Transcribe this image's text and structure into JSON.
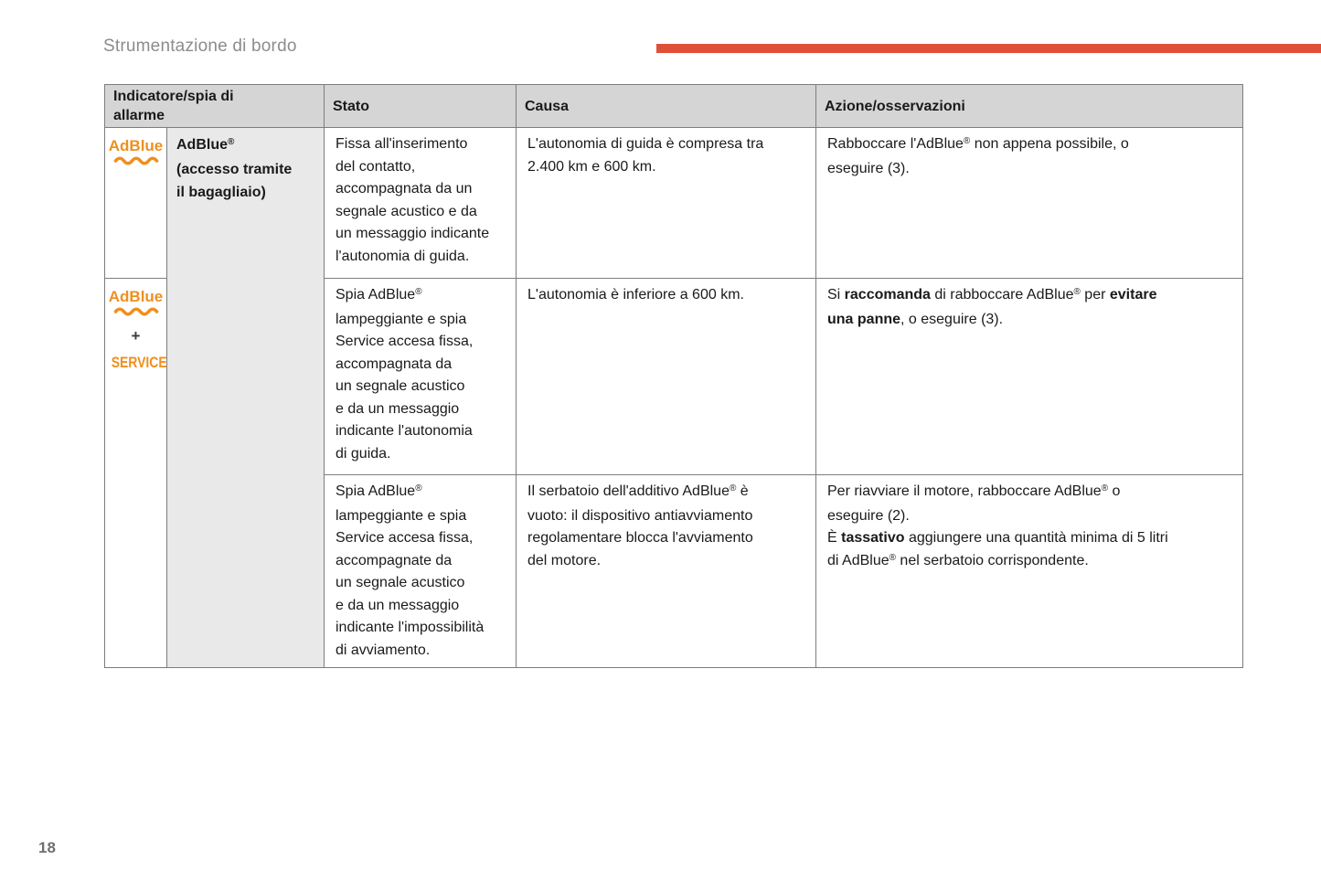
{
  "page": {
    "title": "Strumentazione di bordo",
    "page_number": "18"
  },
  "colors": {
    "accent_bar": "#e04f38",
    "adblue_orange": "#ef8f1f",
    "header_bg": "#d5d5d5",
    "label_bg": "#e9e9e9",
    "table_border": "#7d7d7d"
  },
  "table": {
    "headers": {
      "indicator": "Indicatore/spia di\nallarme",
      "stato": "Stato",
      "causa": "Causa",
      "azione": "Azione/osservazioni"
    },
    "indicator": {
      "adblue_text": "AdBlue",
      "wave_icon": "adblue-wavy-underline-icon",
      "plus": "+",
      "service": "SERVICE",
      "label": [
        {
          "t": "AdBlue",
          "b": true
        },
        {
          "t": "®",
          "b": true,
          "s": true
        },
        {
          "t": "\n(accesso tramite\nil bagagliaio)",
          "b": true
        }
      ]
    },
    "rows": [
      {
        "stato": [
          {
            "t": "Fissa all'inserimento\ndel contatto,\naccompagnata da un\nsegnale acustico e da\nun messaggio indicante\nl'autonomia di guida."
          }
        ],
        "causa": [
          {
            "t": "L'autonomia di guida è compresa tra\n2.400 km e 600 km."
          }
        ],
        "azione": [
          {
            "t": "Rabboccare l'AdBlue"
          },
          {
            "t": "®",
            "s": true
          },
          {
            "t": " non appena possibile, o\neseguire (3)."
          }
        ]
      },
      {
        "stato": [
          {
            "t": "Spia AdBlue"
          },
          {
            "t": "®",
            "s": true
          },
          {
            "t": "\nlampeggiante e spia\nService accesa fissa,\naccompagnata da\nun segnale acustico\ne da un messaggio\nindicante l'autonomia\ndi guida."
          }
        ],
        "causa": [
          {
            "t": "L'autonomia è inferiore a 600 km."
          }
        ],
        "azione": [
          {
            "t": "Si "
          },
          {
            "t": "raccomanda",
            "b": true
          },
          {
            "t": " di rabboccare AdBlue"
          },
          {
            "t": "®",
            "s": true
          },
          {
            "t": " per "
          },
          {
            "t": "evitare\nuna panne",
            "b": true
          },
          {
            "t": ", o eseguire (3)."
          }
        ]
      },
      {
        "stato": [
          {
            "t": "Spia AdBlue"
          },
          {
            "t": "®",
            "s": true
          },
          {
            "t": "\nlampeggiante e spia\nService accesa fissa,\naccompagnate da\nun segnale acustico\ne da un messaggio\nindicante l'impossibilità\ndi avviamento."
          }
        ],
        "causa": [
          {
            "t": "Il serbatoio dell'additivo AdBlue"
          },
          {
            "t": "®",
            "s": true
          },
          {
            "t": " è\nvuoto: il dispositivo antiavviamento\nregolamentare blocca l'avviamento\ndel motore."
          }
        ],
        "azione": [
          {
            "t": "Per riavviare il motore, rabboccare AdBlue"
          },
          {
            "t": "®",
            "s": true
          },
          {
            "t": " o\neseguire (2).\nÈ "
          },
          {
            "t": "tassativo",
            "b": true
          },
          {
            "t": " aggiungere una quantità minima di 5 litri\ndi AdBlue"
          },
          {
            "t": "®",
            "s": true
          },
          {
            "t": " nel serbatoio corrispondente."
          }
        ]
      }
    ]
  }
}
